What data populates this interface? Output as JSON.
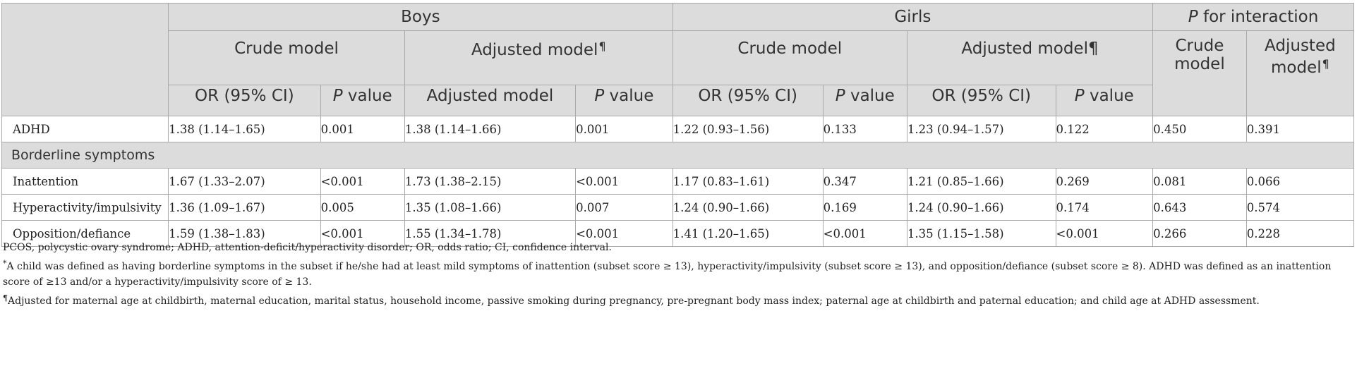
{
  "header": {
    "groups": {
      "boys": "Boys",
      "girls": "Girls",
      "interaction": {
        "p": "P",
        "rest": " for interaction"
      }
    },
    "subgroups": {
      "boys_crude": "Crude model",
      "boys_adjusted": "Adjusted model",
      "boys_adjusted_mark": "¶",
      "girls_crude": "Crude model",
      "girls_adjusted": "Adjusted model¶",
      "int_crude_line1": "Crude",
      "int_crude_line2": "model",
      "int_adjusted_line1": "Adjusted",
      "int_adjusted_line2": "model",
      "int_adjusted_mark": "¶"
    },
    "columns": {
      "boys_or": "OR (95% CI)",
      "boys_p_italic": "P",
      "boys_p_rest": " value",
      "boys_adj": "Adjusted model",
      "boys_adj_p_italic": "P",
      "boys_adj_p_rest": " value",
      "girls_or": "OR (95% CI)",
      "girls_p_italic": "P",
      "girls_p_rest": " value",
      "girls_adj_or": "OR (95% CI)",
      "girls_adj_p_italic": "P",
      "girls_adj_p_rest": " value"
    }
  },
  "rows": {
    "adhd": [
      "ADHD",
      "1.38 (1.14–1.65)",
      "0.001",
      "1.38 (1.14–1.66)",
      "0.001",
      "1.22 (0.93–1.56)",
      "0.133",
      "1.23 (0.94–1.57)",
      "0.122",
      "0.450",
      "0.391"
    ],
    "section_label": "Borderline symptoms",
    "inattention": [
      "Inattention",
      "1.67 (1.33–2.07)",
      "<0.001",
      "1.73 (1.38–2.15)",
      "<0.001",
      "1.17 (0.83–1.61)",
      "0.347",
      "1.21 (0.85–1.66)",
      "0.269",
      "0.081",
      "0.066"
    ],
    "hyperactivity": [
      "Hyperactivity/impulsivity",
      "1.36 (1.09–1.67)",
      "0.005",
      "1.35 (1.08–1.66)",
      "0.007",
      "1.24 (0.90–1.66)",
      "0.169",
      "1.24 (0.90–1.66)",
      "0.174",
      "0.643",
      "0.574"
    ],
    "opposition": [
      "Opposition/defiance",
      "1.59 (1.38–1.83)",
      "<0.001",
      "1.55 (1.34–1.78)",
      "<0.001",
      "1.41 (1.20–1.65)",
      "<0.001",
      "1.35 (1.15–1.58)",
      "<0.001",
      "0.266",
      "0.228"
    ]
  },
  "footnotes": {
    "abbrev": "PCOS, polycystic ovary syndrome; ADHD, attention-deficit/hyperactivity disorder; OR, odds ratio; CI, confidence interval.",
    "star_mark": "*",
    "star_text": "A child was defined as having borderline symptoms in the subset if he/she had at least mild symptoms of inattention (subset score ≥ 13), hyperactivity/impulsivity (subset score ≥ 13), and opposition/defiance (subset score ≥ 8). ADHD was defined as an inattention score of ≥13 and/or a hyperactivity/impulsivity score of ≥ 13.",
    "para_mark": "¶",
    "para_text": "Adjusted for maternal age at childbirth, maternal education, marital status, household income, passive smoking during pregnancy, pre-pregnant body mass index; paternal age at childbirth and paternal education; and child age at ADHD assessment."
  }
}
